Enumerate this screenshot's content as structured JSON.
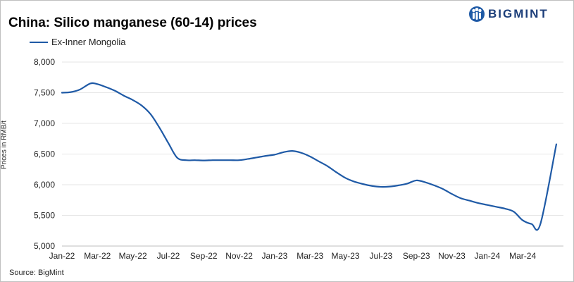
{
  "brand": {
    "name": "BIGMINT",
    "accent": "#1f5aa6"
  },
  "source": "Source: BigMint",
  "chart_data": {
    "type": "line",
    "title": "China: Silico manganese (60-14) prices",
    "xlabel": "",
    "ylabel": "Prices in RMB/t",
    "ylim": [
      5000,
      8000
    ],
    "yticks": [
      "5,000",
      "5,500",
      "6,000",
      "6,500",
      "7,000",
      "7,500",
      "8,000"
    ],
    "ytick_values": [
      5000,
      5500,
      6000,
      6500,
      7000,
      7500,
      8000
    ],
    "xticks": [
      "Jan-22",
      "Mar-22",
      "May-22",
      "Jul-22",
      "Sep-22",
      "Nov-22",
      "Jan-23",
      "Mar-23",
      "May-23",
      "Jul-23",
      "Sep-23",
      "Nov-23",
      "Jan-24",
      "Mar-24"
    ],
    "grid": true,
    "legend": "top-left",
    "series": [
      {
        "name": "Ex-Inner Mongolia",
        "color": "#1f5aa6",
        "x": [
          0,
          0.5,
          1,
          1.6,
          2,
          2.5,
          3,
          3.5,
          4,
          4.5,
          5,
          5.5,
          6,
          6.5,
          7,
          7.5,
          8,
          8.5,
          9,
          9.5,
          10,
          10.5,
          11,
          11.5,
          12,
          12.5,
          13,
          13.5,
          14,
          14.5,
          15,
          15.5,
          16,
          16.5,
          17,
          17.5,
          18,
          18.5,
          19,
          19.5,
          20,
          20.5,
          21,
          21.5,
          22,
          22.5,
          23,
          23.5,
          24,
          24.5,
          25,
          25.5,
          26,
          26.5,
          27
        ],
        "values": [
          7500,
          7510,
          7550,
          7650,
          7640,
          7590,
          7530,
          7450,
          7380,
          7290,
          7150,
          6930,
          6680,
          6440,
          6400,
          6400,
          6395,
          6400,
          6400,
          6400,
          6400,
          6420,
          6445,
          6470,
          6490,
          6530,
          6550,
          6520,
          6460,
          6380,
          6300,
          6200,
          6110,
          6050,
          6010,
          5980,
          5965,
          5970,
          5990,
          6020,
          6070,
          6040,
          5990,
          5930,
          5850,
          5780,
          5740,
          5700,
          5670,
          5640,
          5610,
          5560,
          5420,
          5360,
          5360
        ]
      }
    ],
    "end_point": {
      "x": 27.9,
      "value": 6660
    }
  }
}
